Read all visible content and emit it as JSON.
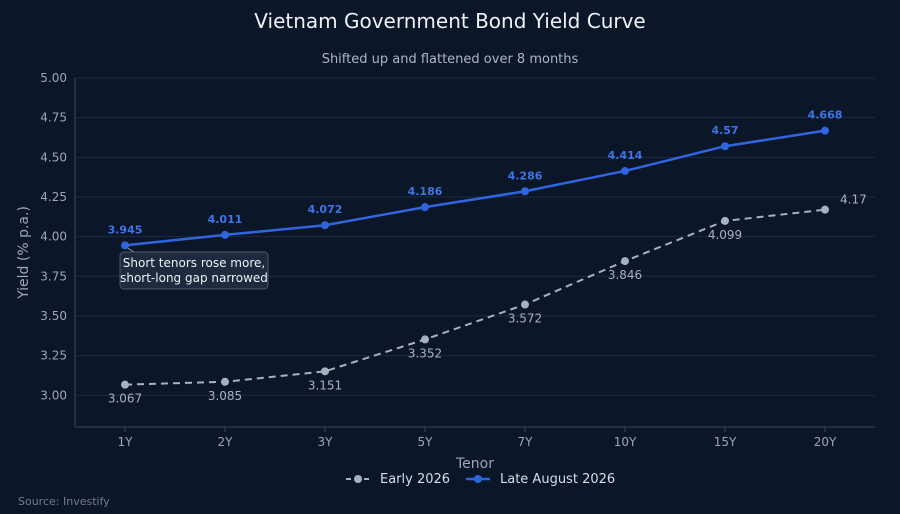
{
  "chart_data": {
    "type": "line",
    "title": "Vietnam Government Bond Yield Curve",
    "subtitle": "Shifted up and flattened over 8 months",
    "xlabel": "Tenor",
    "ylabel": "Yield (% p.a.)",
    "categories": [
      "1Y",
      "2Y",
      "3Y",
      "5Y",
      "7Y",
      "10Y",
      "15Y",
      "20Y"
    ],
    "ylim": [
      2.8,
      5.0
    ],
    "yticks": [
      "3.00",
      "3.25",
      "3.50",
      "3.75",
      "4.00",
      "4.25",
      "4.50",
      "4.75",
      "5.00"
    ],
    "grid": true,
    "legend_position": "bottom",
    "series": [
      {
        "name": "Early 2026",
        "values": [
          3.067,
          3.085,
          3.151,
          3.352,
          3.572,
          3.846,
          4.099,
          4.17
        ],
        "labels": [
          "3.067",
          "3.085",
          "3.151",
          "3.352",
          "3.572",
          "3.846",
          "4.099",
          "4.17"
        ],
        "color": "#a7b1bf",
        "style": "dashed"
      },
      {
        "name": "Late August 2026",
        "values": [
          3.945,
          4.011,
          4.072,
          4.186,
          4.286,
          4.414,
          4.57,
          4.668
        ],
        "labels": [
          "3.945",
          "4.011",
          "4.072",
          "4.186",
          "4.286",
          "4.414",
          "4.57",
          "4.668"
        ],
        "color": "#2f66e0",
        "style": "solid"
      }
    ],
    "annotation": {
      "lines": [
        "Short tenors rose more,",
        "short-long gap narrowed"
      ],
      "series": "Late August 2026",
      "category": "1Y"
    }
  },
  "source": "Source: Investify",
  "colors": {
    "background": "#0b1628",
    "grid": "#1c2a40",
    "early": "#a7b1bf",
    "late": "#2f66e0",
    "late_label": "#3d74e8"
  }
}
